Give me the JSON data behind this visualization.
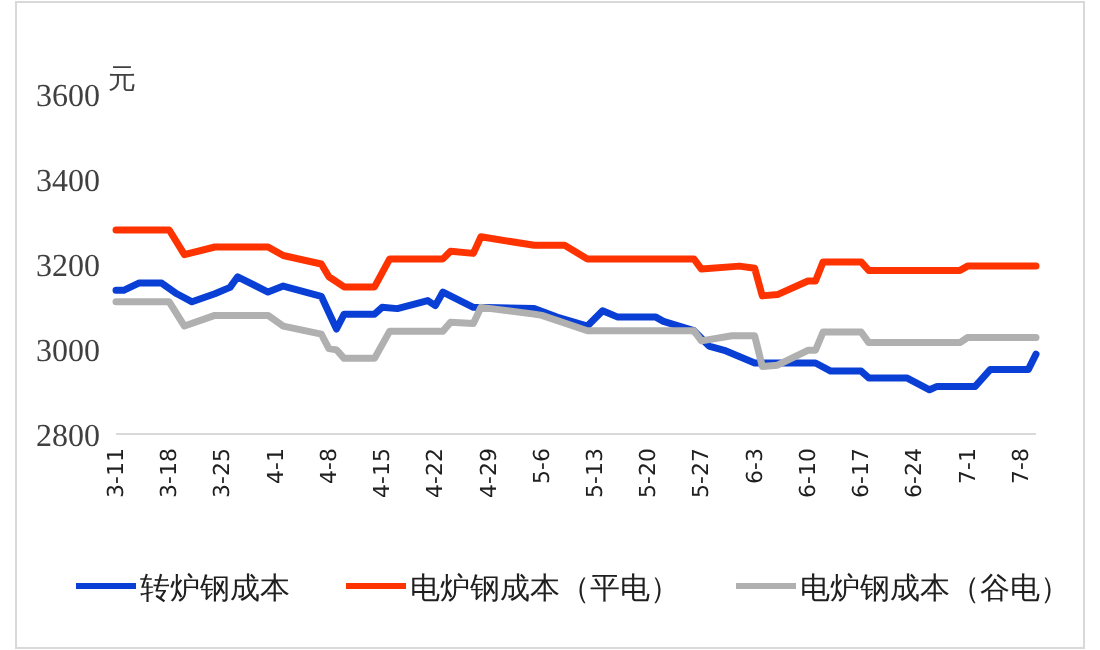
{
  "chart_data": {
    "type": "line",
    "ylabel": "元",
    "legend": "bottom",
    "grid": false,
    "marker": "none",
    "line_style": "solid",
    "xlim": [
      "--03-11",
      "--07-10"
    ],
    "xticks": [
      {
        "value": "--03-11",
        "label": "3-11"
      },
      {
        "value": "--03-18",
        "label": "3-18"
      },
      {
        "value": "--03-25",
        "label": "3-25"
      },
      {
        "value": "--04-01",
        "label": "4-1"
      },
      {
        "value": "--04-08",
        "label": "4-8"
      },
      {
        "value": "--04-15",
        "label": "4-15"
      },
      {
        "value": "--04-22",
        "label": "4-22"
      },
      {
        "value": "--04-29",
        "label": "4-29"
      },
      {
        "value": "--05-06",
        "label": "5-6"
      },
      {
        "value": "--05-13",
        "label": "5-13"
      },
      {
        "value": "--05-20",
        "label": "5-20"
      },
      {
        "value": "--05-27",
        "label": "5-27"
      },
      {
        "value": "--06-03",
        "label": "6-3"
      },
      {
        "value": "--06-10",
        "label": "6-10"
      },
      {
        "value": "--06-17",
        "label": "6-17"
      },
      {
        "value": "--06-24",
        "label": "6-24"
      },
      {
        "value": "--07-01",
        "label": "7-1"
      },
      {
        "value": "--07-08",
        "label": "7-8"
      }
    ],
    "ylim": [
      2800,
      3600
    ],
    "yticks": [
      2800,
      3000,
      3200,
      3400,
      3600
    ],
    "series": [
      {
        "name": "转炉钢成本",
        "color": "#0a3fd6",
        "x": [
          "--03-11",
          "--03-12",
          "--03-14",
          "--03-17",
          "--03-19",
          "--03-21",
          "--03-24",
          "--03-26",
          "--03-27",
          "--03-31",
          "--04-02",
          "--04-07",
          "--04-09",
          "--04-10",
          "--04-14",
          "--04-15",
          "--04-17",
          "--04-21",
          "--04-22",
          "--04-23",
          "--04-27",
          "--05-05",
          "--05-08",
          "--05-12",
          "--05-14",
          "--05-16",
          "--05-21",
          "--05-22",
          "--05-26",
          "--05-28",
          "--05-30",
          "--06-03",
          "--06-11",
          "--06-13",
          "--06-17",
          "--06-18",
          "--06-23",
          "--06-26",
          "--06-27",
          "--07-02",
          "--07-04",
          "--07-09",
          "--07-10"
        ],
        "values": [
          3138,
          3138,
          3155,
          3155,
          3130,
          3111,
          3130,
          3145,
          3170,
          3134,
          3148,
          3124,
          3047,
          3082,
          3082,
          3098,
          3095,
          3114,
          3102,
          3134,
          3098,
          3095,
          3075,
          3054,
          3090,
          3075,
          3075,
          3065,
          3043,
          3007,
          2997,
          2967,
          2967,
          2948,
          2948,
          2932,
          2932,
          2904,
          2912,
          2912,
          2952,
          2952,
          2988
        ]
      },
      {
        "name": "电炉钢成本（平电）",
        "color": "#ff3300",
        "x": [
          "--03-11",
          "--03-18",
          "--03-20",
          "--03-24",
          "--03-31",
          "--04-02",
          "--04-07",
          "--04-08",
          "--04-10",
          "--04-14",
          "--04-16",
          "--04-23",
          "--04-24",
          "--04-27",
          "--04-28",
          "--05-05",
          "--05-09",
          "--05-12",
          "--05-26",
          "--05-27",
          "--06-01",
          "--06-03",
          "--06-04",
          "--06-06",
          "--06-10",
          "--06-11",
          "--06-12",
          "--06-17",
          "--06-18",
          "--06-30",
          "--07-01",
          "--07-10"
        ],
        "values": [
          3280,
          3280,
          3222,
          3240,
          3240,
          3220,
          3200,
          3170,
          3146,
          3146,
          3212,
          3212,
          3230,
          3225,
          3264,
          3244,
          3244,
          3212,
          3212,
          3188,
          3195,
          3190,
          3125,
          3128,
          3160,
          3160,
          3205,
          3205,
          3185,
          3185,
          3195,
          3195
        ]
      },
      {
        "name": "电炉钢成本（谷电）",
        "color": "#b0b0b0",
        "x": [
          "--03-11",
          "--03-18",
          "--03-20",
          "--03-24",
          "--03-31",
          "--04-02",
          "--04-07",
          "--04-08",
          "--04-09",
          "--04-10",
          "--04-14",
          "--04-16",
          "--04-23",
          "--04-24",
          "--04-27",
          "--04-28",
          "--05-05",
          "--05-06",
          "--05-12",
          "--05-26",
          "--05-27",
          "--05-31",
          "--06-03",
          "--06-04",
          "--06-06",
          "--06-10",
          "--06-11",
          "--06-12",
          "--06-17",
          "--06-18",
          "--06-30",
          "--07-01",
          "--07-10"
        ],
        "values": [
          3111,
          3111,
          3054,
          3079,
          3079,
          3054,
          3035,
          3001,
          2998,
          2978,
          2978,
          3042,
          3042,
          3063,
          3060,
          3098,
          3082,
          3079,
          3043,
          3043,
          3019,
          3031,
          3031,
          2959,
          2962,
          2997,
          2997,
          3040,
          3040,
          3015,
          3015,
          3027,
          3027
        ]
      }
    ]
  }
}
